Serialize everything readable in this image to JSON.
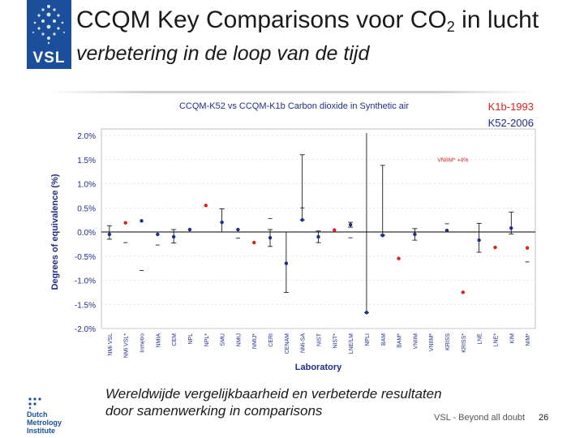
{
  "header": {
    "logo_text": "VSL",
    "title_prefix": "CCQM Key Comparisons voor CO",
    "title_subscript": "2",
    "title_suffix": " in lucht",
    "subtitle": "verbetering in de loop van de tijd"
  },
  "colors": {
    "brand": "#1b4f9c",
    "k1b_series": "#d92222",
    "k52_series": "#1f2d8a"
  },
  "chart_data": {
    "type": "scatter",
    "title": "CCQM-K52 vs CCQM-K1b Carbon dioxide in Synthetic air",
    "xlabel": "Laboratory",
    "ylabel": "Degrees of equivalence (%)",
    "ylim": [
      -2.0,
      2.0
    ],
    "yticks": [
      2.0,
      1.5,
      1.0,
      0.5,
      0.0,
      -0.5,
      -1.0,
      -1.5,
      -2.0
    ],
    "ytick_labels": [
      "2.0%",
      "1.5%",
      "1.0%",
      "0.5%",
      "0.0%",
      "-0.5%",
      "-1.0%",
      "-1.5%",
      "-2.0%"
    ],
    "categories": [
      "NMi VSL",
      "NMi VSL*",
      "Inmetro",
      "NMIA",
      "CEM",
      "NPL",
      "NPL*",
      "SMU",
      "NMIJ",
      "NMIJ*",
      "CERI",
      "CENAM",
      "NMi-SA",
      "NIST",
      "NIST*",
      "LNE/LM",
      "NPLI",
      "BAM",
      "BAM*",
      "VNIIM",
      "VNIIM*",
      "KRISS",
      "KRISS*",
      "LNE",
      "LNE*",
      "KIM",
      "NIM*"
    ],
    "legend": [
      "K1b-1993",
      "K52-2006"
    ],
    "annotation": "VNIIM* +4%",
    "series": [
      {
        "name": "K1b-1993",
        "x": [
          "NMi VSL*",
          "NPL*",
          "NMIJ*",
          "NIST*",
          "BAM*",
          "KRISS*",
          "LNE*",
          "NIM*"
        ],
        "y": [
          0.19,
          0.55,
          -0.22,
          0.04,
          -0.55,
          -1.25,
          -0.32,
          -0.33
        ],
        "err_up": [
          0.0,
          0.0,
          0.0,
          0.0,
          0.0,
          0.0,
          0.0,
          0.0
        ],
        "err_down": [
          0.0,
          0.0,
          0.0,
          0.0,
          0.0,
          0.0,
          0.0,
          0.0
        ]
      },
      {
        "name": "K52-2006",
        "x": [
          "NMi VSL",
          "Inmetro",
          "NMIA",
          "CEM",
          "NPL",
          "SMU",
          "NMIJ",
          "CERI",
          "CENAM",
          "NMi-SA",
          "NIST",
          "LNE/LM",
          "NPLI",
          "BAM",
          "VNIIM",
          "KRISS",
          "LNE",
          "KIM"
        ],
        "y": [
          -0.05,
          0.23,
          -0.05,
          -0.1,
          0.05,
          0.2,
          0.05,
          -0.12,
          -0.65,
          0.25,
          -0.1,
          0.15,
          -1.67,
          -0.07,
          -0.05,
          0.03,
          -0.17,
          0.08
        ],
        "err_up": [
          0.18,
          0.0,
          0.0,
          0.15,
          0.0,
          0.28,
          0.0,
          0.17,
          0.65,
          1.35,
          0.12,
          0.05,
          4.0,
          1.45,
          0.12,
          0.0,
          0.35,
          0.33
        ],
        "err_down": [
          0.1,
          0.0,
          0.0,
          0.13,
          0.0,
          0.2,
          0.0,
          0.18,
          0.6,
          0.0,
          0.12,
          0.05,
          0.0,
          0.0,
          0.12,
          0.0,
          0.25,
          0.12
        ]
      }
    ],
    "stray_ticks": [
      {
        "x": "NMi VSL*",
        "y": -0.22
      },
      {
        "x": "Inmetro",
        "y": -0.8
      },
      {
        "x": "NMIA",
        "y": -0.27
      },
      {
        "x": "NMIJ",
        "y": -0.13
      },
      {
        "x": "CERI",
        "y": 0.28
      },
      {
        "x": "NMi-SA",
        "y": 0.5
      },
      {
        "x": "LNE/LM",
        "y": -0.12
      },
      {
        "x": "BAM",
        "y": -0.05
      },
      {
        "x": "KRISS",
        "y": 0.17
      },
      {
        "x": "NIM*",
        "y": -0.62
      }
    ]
  },
  "footer": {
    "tagline_line1": "Wereldwijde vergelijkbaarheid en verbeterde resultaten",
    "tagline_line2": "door samenwerking in comparisons",
    "brand_text": "VSL  -  Beyond all doubt",
    "page_number": "26",
    "dmi_line1": "Dutch",
    "dmi_line2": "Metrology",
    "dmi_line3": "Institute"
  }
}
